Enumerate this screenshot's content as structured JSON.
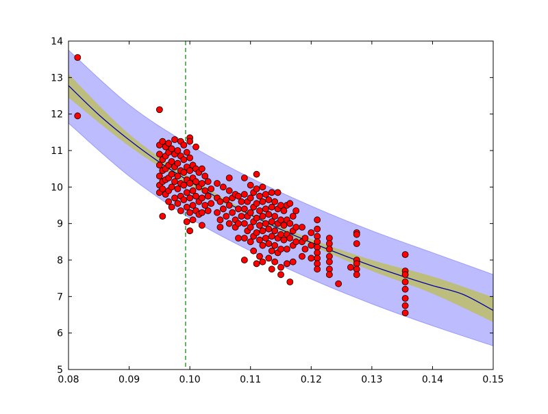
{
  "chart_data": {
    "type": "scatter",
    "title": "",
    "xlabel": "",
    "ylabel": "",
    "xlim": [
      0.08,
      0.15
    ],
    "ylim": [
      5,
      14
    ],
    "xticks": [
      "0.08",
      "0.09",
      "0.10",
      "0.11",
      "0.12",
      "0.13",
      "0.14",
      "0.15"
    ],
    "yticks": [
      "5",
      "6",
      "7",
      "8",
      "9",
      "10",
      "11",
      "12",
      "13",
      "14"
    ],
    "grid": false,
    "legend": "none",
    "vertical_reference_line": {
      "x": 0.0993,
      "style": "dashed",
      "color": "#008000"
    },
    "fit_curve": {
      "x": [
        0.08,
        0.085,
        0.09,
        0.095,
        0.1,
        0.105,
        0.11,
        0.115,
        0.12,
        0.125,
        0.13,
        0.135,
        0.14,
        0.145,
        0.15
      ],
      "y": [
        12.78,
        11.98,
        11.29,
        10.68,
        10.15,
        9.67,
        9.24,
        8.84,
        8.48,
        8.15,
        7.84,
        7.56,
        7.3,
        7.06,
        6.62
      ]
    },
    "confidence_band": {
      "x": [
        0.08,
        0.09,
        0.1,
        0.11,
        0.12,
        0.13,
        0.14,
        0.15
      ],
      "lower": [
        12.45,
        11.12,
        10.05,
        9.2,
        8.4,
        7.7,
        7.08,
        6.3
      ],
      "upper": [
        13.1,
        11.45,
        10.27,
        9.3,
        8.58,
        8.0,
        7.55,
        6.98
      ]
    },
    "prediction_band": {
      "x": [
        0.08,
        0.09,
        0.1,
        0.11,
        0.12,
        0.13,
        0.14,
        0.15
      ],
      "lower": [
        11.75,
        10.3,
        9.15,
        8.25,
        7.48,
        6.8,
        6.2,
        5.65
      ],
      "upper": [
        13.75,
        12.25,
        11.15,
        10.25,
        9.48,
        8.8,
        8.2,
        7.6
      ]
    },
    "series": [
      {
        "points": [
          [
            0.0815,
            13.55
          ],
          [
            0.0815,
            11.95
          ],
          [
            0.095,
            12.12
          ],
          [
            0.0955,
            9.2
          ],
          [
            0.095,
            11.15
          ],
          [
            0.095,
            10.9
          ],
          [
            0.095,
            10.6
          ],
          [
            0.095,
            10.3
          ],
          [
            0.095,
            10.05
          ],
          [
            0.095,
            9.85
          ],
          [
            0.0955,
            11.25
          ],
          [
            0.0955,
            10.75
          ],
          [
            0.0955,
            10.45
          ],
          [
            0.0955,
            10.15
          ],
          [
            0.0955,
            9.95
          ],
          [
            0.096,
            11.1
          ],
          [
            0.096,
            10.85
          ],
          [
            0.096,
            10.5
          ],
          [
            0.096,
            10.2
          ],
          [
            0.096,
            9.8
          ],
          [
            0.0965,
            11.2
          ],
          [
            0.0965,
            10.95
          ],
          [
            0.0965,
            10.6
          ],
          [
            0.0965,
            10.25
          ],
          [
            0.0965,
            9.9
          ],
          [
            0.0965,
            9.6
          ],
          [
            0.097,
            11.05
          ],
          [
            0.097,
            10.7
          ],
          [
            0.097,
            10.35
          ],
          [
            0.097,
            10.0
          ],
          [
            0.097,
            9.45
          ],
          [
            0.0975,
            11.3
          ],
          [
            0.0975,
            10.9
          ],
          [
            0.0975,
            10.55
          ],
          [
            0.0975,
            10.15
          ],
          [
            0.0975,
            9.7
          ],
          [
            0.098,
            11.0
          ],
          [
            0.098,
            10.65
          ],
          [
            0.098,
            10.3
          ],
          [
            0.098,
            9.95
          ],
          [
            0.098,
            9.55
          ],
          [
            0.0985,
            11.25
          ],
          [
            0.0985,
            10.85
          ],
          [
            0.0985,
            10.45
          ],
          [
            0.0985,
            10.1
          ],
          [
            0.0985,
            9.75
          ],
          [
            0.0985,
            9.35
          ],
          [
            0.099,
            11.15
          ],
          [
            0.099,
            10.75
          ],
          [
            0.099,
            10.4
          ],
          [
            0.099,
            10.05
          ],
          [
            0.099,
            9.65
          ],
          [
            0.0995,
            10.95
          ],
          [
            0.0995,
            10.55
          ],
          [
            0.0995,
            10.2
          ],
          [
            0.0995,
            9.85
          ],
          [
            0.0995,
            9.45
          ],
          [
            0.0995,
            9.05
          ],
          [
            0.1,
            11.35
          ],
          [
            0.1,
            11.25
          ],
          [
            0.1,
            10.8
          ],
          [
            0.1,
            10.45
          ],
          [
            0.1,
            10.1
          ],
          [
            0.1,
            9.7
          ],
          [
            0.1,
            9.3
          ],
          [
            0.1,
            8.8
          ],
          [
            0.1005,
            10.6
          ],
          [
            0.1005,
            10.25
          ],
          [
            0.1005,
            9.9
          ],
          [
            0.1005,
            9.5
          ],
          [
            0.1005,
            9.1
          ],
          [
            0.101,
            11.1
          ],
          [
            0.101,
            10.5
          ],
          [
            0.101,
            10.15
          ],
          [
            0.101,
            9.75
          ],
          [
            0.101,
            9.35
          ],
          [
            0.1015,
            10.4
          ],
          [
            0.1015,
            10.0
          ],
          [
            0.1015,
            9.6
          ],
          [
            0.1015,
            9.25
          ],
          [
            0.102,
            10.5
          ],
          [
            0.102,
            10.1
          ],
          [
            0.102,
            9.7
          ],
          [
            0.102,
            9.3
          ],
          [
            0.102,
            8.95
          ],
          [
            0.1025,
            10.3
          ],
          [
            0.1025,
            9.9
          ],
          [
            0.1025,
            9.5
          ],
          [
            0.103,
            10.15
          ],
          [
            0.103,
            9.75
          ],
          [
            0.103,
            9.35
          ],
          [
            0.1035,
            9.95
          ],
          [
            0.1035,
            9.55
          ],
          [
            0.1045,
            10.1
          ],
          [
            0.1045,
            9.7
          ],
          [
            0.1045,
            9.3
          ],
          [
            0.105,
            9.6
          ],
          [
            0.105,
            9.1
          ],
          [
            0.105,
            8.9
          ],
          [
            0.1055,
            10.0
          ],
          [
            0.1055,
            9.4
          ],
          [
            0.106,
            9.65
          ],
          [
            0.106,
            9.2
          ],
          [
            0.1065,
            10.25
          ],
          [
            0.1065,
            9.9
          ],
          [
            0.1065,
            9.5
          ],
          [
            0.1065,
            9.0
          ],
          [
            0.107,
            9.7
          ],
          [
            0.107,
            9.3
          ],
          [
            0.1075,
            9.8
          ],
          [
            0.1075,
            9.1
          ],
          [
            0.1075,
            8.9
          ],
          [
            0.108,
            9.75
          ],
          [
            0.108,
            9.4
          ],
          [
            0.108,
            9.0
          ],
          [
            0.108,
            8.6
          ],
          [
            0.1085,
            9.6
          ],
          [
            0.1085,
            9.2
          ],
          [
            0.109,
            10.25
          ],
          [
            0.109,
            9.8
          ],
          [
            0.109,
            9.4
          ],
          [
            0.109,
            9.0
          ],
          [
            0.109,
            8.6
          ],
          [
            0.109,
            8.0
          ],
          [
            0.1095,
            9.6
          ],
          [
            0.1095,
            9.2
          ],
          [
            0.1095,
            8.8
          ],
          [
            0.11,
            10.05
          ],
          [
            0.11,
            9.7
          ],
          [
            0.11,
            9.3
          ],
          [
            0.11,
            8.9
          ],
          [
            0.11,
            8.5
          ],
          [
            0.1105,
            9.85
          ],
          [
            0.1105,
            9.45
          ],
          [
            0.1105,
            9.05
          ],
          [
            0.1105,
            8.65
          ],
          [
            0.1105,
            8.25
          ],
          [
            0.111,
            10.35
          ],
          [
            0.111,
            9.95
          ],
          [
            0.111,
            9.55
          ],
          [
            0.111,
            9.15
          ],
          [
            0.111,
            8.75
          ],
          [
            0.111,
            7.9
          ],
          [
            0.1115,
            9.75
          ],
          [
            0.1115,
            9.35
          ],
          [
            0.1115,
            8.95
          ],
          [
            0.1115,
            8.55
          ],
          [
            0.1115,
            8.1
          ],
          [
            0.112,
            10.0
          ],
          [
            0.112,
            9.6
          ],
          [
            0.112,
            9.2
          ],
          [
            0.112,
            8.8
          ],
          [
            0.112,
            8.4
          ],
          [
            0.112,
            7.95
          ],
          [
            0.1125,
            9.8
          ],
          [
            0.1125,
            9.4
          ],
          [
            0.1125,
            9.0
          ],
          [
            0.1125,
            8.6
          ],
          [
            0.113,
            9.65
          ],
          [
            0.113,
            9.25
          ],
          [
            0.113,
            8.85
          ],
          [
            0.113,
            8.45
          ],
          [
            0.113,
            8.05
          ],
          [
            0.1135,
            9.85
          ],
          [
            0.1135,
            9.45
          ],
          [
            0.1135,
            9.05
          ],
          [
            0.1135,
            8.65
          ],
          [
            0.1135,
            8.25
          ],
          [
            0.1135,
            7.75
          ],
          [
            0.114,
            9.6
          ],
          [
            0.114,
            9.2
          ],
          [
            0.114,
            8.8
          ],
          [
            0.114,
            8.4
          ],
          [
            0.114,
            7.95
          ],
          [
            0.1145,
            9.85
          ],
          [
            0.1145,
            9.4
          ],
          [
            0.1145,
            9.0
          ],
          [
            0.1145,
            8.6
          ],
          [
            0.1145,
            8.2
          ],
          [
            0.115,
            9.5
          ],
          [
            0.115,
            9.1
          ],
          [
            0.115,
            8.7
          ],
          [
            0.115,
            8.3
          ],
          [
            0.115,
            7.8
          ],
          [
            0.115,
            7.6
          ],
          [
            0.1155,
            9.35
          ],
          [
            0.1155,
            8.95
          ],
          [
            0.1155,
            8.55
          ],
          [
            0.116,
            9.5
          ],
          [
            0.116,
            9.1
          ],
          [
            0.116,
            8.7
          ],
          [
            0.116,
            8.3
          ],
          [
            0.116,
            7.9
          ],
          [
            0.1165,
            9.55
          ],
          [
            0.1165,
            9.0
          ],
          [
            0.1165,
            8.6
          ],
          [
            0.1165,
            7.4
          ],
          [
            0.117,
            9.2
          ],
          [
            0.117,
            8.8
          ],
          [
            0.117,
            8.4
          ],
          [
            0.117,
            7.95
          ],
          [
            0.1175,
            9.35
          ],
          [
            0.1175,
            8.9
          ],
          [
            0.1175,
            8.5
          ],
          [
            0.1185,
            8.9
          ],
          [
            0.1185,
            8.5
          ],
          [
            0.1185,
            8.1
          ],
          [
            0.119,
            8.6
          ],
          [
            0.119,
            8.3
          ],
          [
            0.12,
            8.75
          ],
          [
            0.12,
            8.4
          ],
          [
            0.12,
            8.05
          ],
          [
            0.121,
            9.1
          ],
          [
            0.121,
            8.85
          ],
          [
            0.121,
            8.65
          ],
          [
            0.121,
            8.5
          ],
          [
            0.121,
            8.35
          ],
          [
            0.121,
            8.2
          ],
          [
            0.121,
            8.05
          ],
          [
            0.121,
            7.9
          ],
          [
            0.121,
            7.75
          ],
          [
            0.123,
            8.6
          ],
          [
            0.123,
            8.45
          ],
          [
            0.123,
            8.3
          ],
          [
            0.123,
            8.1
          ],
          [
            0.123,
            7.95
          ],
          [
            0.123,
            7.75
          ],
          [
            0.123,
            7.6
          ],
          [
            0.1245,
            7.35
          ],
          [
            0.1265,
            7.8
          ],
          [
            0.1275,
            8.75
          ],
          [
            0.1275,
            8.7
          ],
          [
            0.1275,
            8.45
          ],
          [
            0.1275,
            8.0
          ],
          [
            0.1275,
            7.9
          ],
          [
            0.1275,
            7.75
          ],
          [
            0.1275,
            7.6
          ],
          [
            0.1355,
            8.15
          ],
          [
            0.1355,
            7.7
          ],
          [
            0.1355,
            7.6
          ],
          [
            0.1355,
            7.4
          ],
          [
            0.1355,
            7.2
          ],
          [
            0.1355,
            6.95
          ],
          [
            0.1355,
            6.75
          ],
          [
            0.1355,
            6.55
          ]
        ]
      }
    ]
  }
}
